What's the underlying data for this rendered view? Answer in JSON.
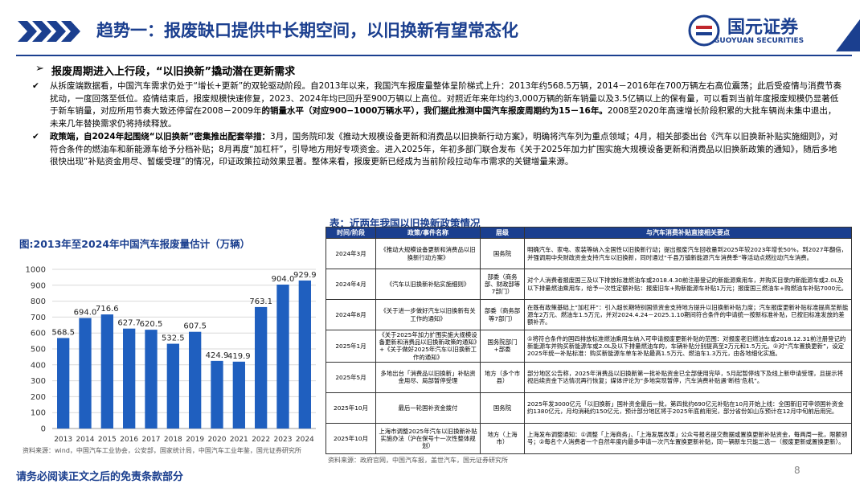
{
  "header": {
    "title": "趋势一：报废缺口提供中长期空间，以旧换新有望常态化",
    "logo_cn": "国元证券",
    "logo_en": "GUOYUAN SECURITIES"
  },
  "section": {
    "heading": "报废周期进入上行段，“以旧换新”撬动潜在更新需求",
    "bullets": [
      [
        {
          "text": "从拆废端数据看，中国汽车需求仍处于“增长+更新”的双轮驱动阶段。自2013年以来，我国汽车报废量整体呈阶梯式上升：2013年约568.5万辆，2014－2016年在700万辆左右高位震荡；此后受疫情与消费节奏扰动，一度回落至低位。疫情结束后，报废规模快速修复，2023、2024年均已回升至900万辆以上高位。对照近年来年均约3,000万辆的新车销量以及3.5亿辆以上的保有量，可以看到当前年度报废规模仍显著低于新车销量，对应所用节奏大致还停留在2008－2009年",
          "bold": false
        },
        {
          "text": "的销量水平（对应900−1000万辆水平），我们据此推测中国汽车报废周期约为15－16年。",
          "bold": true
        },
        {
          "text": "2008至2020年高速增长阶段积累的大批车辆尚未集中退出，未来几年替换需求仍将持续释放。",
          "bold": false
        }
      ],
      [
        {
          "text": "政策端，自2024年起围绕“以旧换新”密集推出配套举措：",
          "bold": true
        },
        {
          "text": "3月，国务院印发《推动大规模设备更新和消费品以旧换新行动方案》，明确将汽车列为重点领域；4月，相关部委出台《汽车以旧换新补贴实施细则》，对符合条件的燃油车和新能源车给予分档补贴；8月再度“加杠杆”，引导地方用好专项资金。进入2025年，年初多部门联合发布《关于2025年加力扩围实施大规模设备更新和消费品以旧换新政策的通知》，随后多地很快出现“补贴资金用尽、暂缓受理”的情况，印证政策拉动效果显著。整体来看，报废更新已经成为当前阶段拉动车市需求的关键增量来源。",
          "bold": false
        }
      ]
    ]
  },
  "chart_data": {
    "type": "bar",
    "title": "图:2013年至2024年中国汽车报废量估计（万辆）",
    "categories": [
      "2013",
      "2014",
      "2015",
      "2016",
      "2017",
      "2018",
      "2019",
      "2020",
      "2021",
      "2022",
      "2023",
      "2024"
    ],
    "values": [
      568.5,
      694.0,
      716.6,
      627.7,
      620.5,
      532.5,
      607.5,
      424.9,
      419.9,
      763.1,
      904.0,
      929.9
    ],
    "value_labels": [
      "568.5",
      "694.0",
      "716.6",
      "627.7",
      "620.5",
      "532.5",
      "607.5",
      "424.9",
      "419.9",
      "763.1",
      "904.0",
      "929.9"
    ],
    "color": "#1f5fbf",
    "ylim": [
      0,
      1000
    ],
    "yticks": [
      0,
      100,
      200,
      300,
      400,
      500,
      600,
      700,
      800,
      900,
      1000
    ],
    "grid": true,
    "source": "资料来源：wind，中国汽车工业协会，公安部，国家统计局，中国汽车工业年鉴，国元证券研究所"
  },
  "table": {
    "title": "表：近两年我国以旧换新政策情况",
    "headers": [
      "时间/阶段",
      "政策/事件名称",
      "层级",
      "与汽车消费补贴直接相关要点"
    ],
    "rows": [
      [
        "2024年3月",
        "《推动大规模设备更新和消费品以旧换新行动方案》",
        "国务院",
        "明确汽车、家电、家装等纳入全国性以旧换新行动；提出报废汽车回收量到2025年较2023年增长50%，到2027年翻倍，并强调用中央财政资金支持汽车以旧换新，同时通过“千县万镇新能源汽车消费季”等活动点燃拉动汽车消费。"
      ],
      [
        "2024年4月",
        "《汽车以旧换新补贴实施细则》",
        "部委（商务部、财政部等7部门）",
        "对个人消费者报废国三及以下排放标准燃油车或2018.4.30前注册登记的新能源乘用车，并购买目录内新能源车或2.0L及以下排量燃油乘用车，给予一次性定额补贴：报废旧车+购新能源车补贴1万元；报废国三燃油车+购燃油车补贴7000元。"
      ],
      [
        "2024年8月",
        "《关于进一步做好汽车以旧换新有关工作的通知》",
        "部委（商务部等7部门）",
        "在既有政策基础上“加杠杆”：引入超长期特别国债资金支持地方提升以旧换新补贴力度；汽车报废更新补贴标准提高至新能源车2万元、燃油车1.5万元，并对2024.4.24－2025.1.10期间符合条件的申请统一按新标准补贴，已按旧标准发放的差额补齐。"
      ],
      [
        "2025年1月",
        "《关于2025年加力扩围实施大规模设备更新和消费品以旧换新政策的通知》+《关于做好2025年汽车以旧换新工作的通知》",
        "国务院部门+部委",
        "①将符合条件的国四排放标准燃油乘用车纳入可申请报废更新补贴的范围：对报废老旧燃油车或2018.12.31前注册登记的新能源车并购买新能源车或2.0L及以下排量燃油车的，车辆补贴分别提高至2万元和1.5万元。②对“汽车置换更新”，设定2025年统一补贴标准：购买新能源车单车补贴最高1.5万元、燃油车1.3万元，由各地细化实施。"
      ],
      [
        "2025年5月",
        "多地出台「消费品以旧换新」补贴资金用尽、局部暂停受理",
        "地方（多个市县）",
        "部分地区公告称，2025年消费品以旧换新第一批补贴资金已全部使用完毕，5月起暂停线下及线上新申请受理，且提示将视后续资金下达情况再行恢复；媒体评论为“多地突现暂停，汽车消费补贴遇‘断档’危机”。"
      ],
      [
        "2025年10月",
        "最后一轮国补资金拨付",
        "国务院",
        "2025年发3000亿元「以旧换新」国补资金最后一批，第四批约690亿元补贴在10月开始上线：全国新旧可申领国补资金约1380亿元，月均消耗约150亿元，预计部分地区将于2025年底前用完，部分省份如山东预计在12月中旬前后用完。"
      ],
      [
        "2025年10月",
        "上海市调整2025年汽车以旧换新补贴实施办法（沪在保号十一次性整体规划）",
        "地方（上海市）",
        "上海发布调整通知：①调整「上海商务」、「上海发展改革」公众号报名提交数据或置换更新补贴资金，每两周一批，限额领号；②每名个人消费者一个自然年度内最多申请一次汽车置换更新补贴，同一辆新车只能二选一（报废更新或置换更新）。"
      ]
    ],
    "source": "资料来源：政府官网，中国汽车报，盖世汽车，国元证券研究所"
  },
  "footer": {
    "disclaimer": "请务必阅读正文之后的免责条款部分",
    "page": "8"
  }
}
